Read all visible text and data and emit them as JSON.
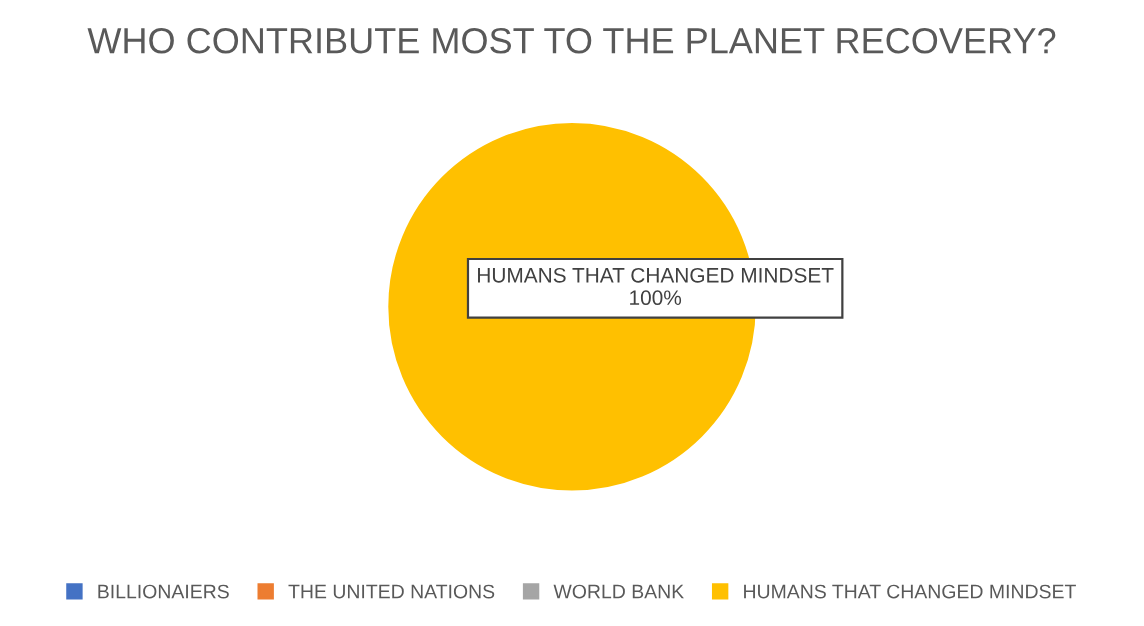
{
  "chart_data": {
    "type": "pie",
    "title": "WHO CONTRIBUTE MOST TO THE PLANET RECOVERY?",
    "categories": [
      "BILLIONAIERS",
      "THE UNITED NATIONS",
      "WORLD BANK",
      "HUMANS THAT CHANGED MINDSET"
    ],
    "values": [
      0,
      0,
      0,
      100
    ],
    "colors": [
      "#4472c4",
      "#ed7d31",
      "#a5a5a5",
      "#ffc000"
    ],
    "value_labels": [
      null,
      null,
      null,
      "HUMANS THAT CHANGED MINDSET\n100%"
    ],
    "legend": "bottom"
  }
}
